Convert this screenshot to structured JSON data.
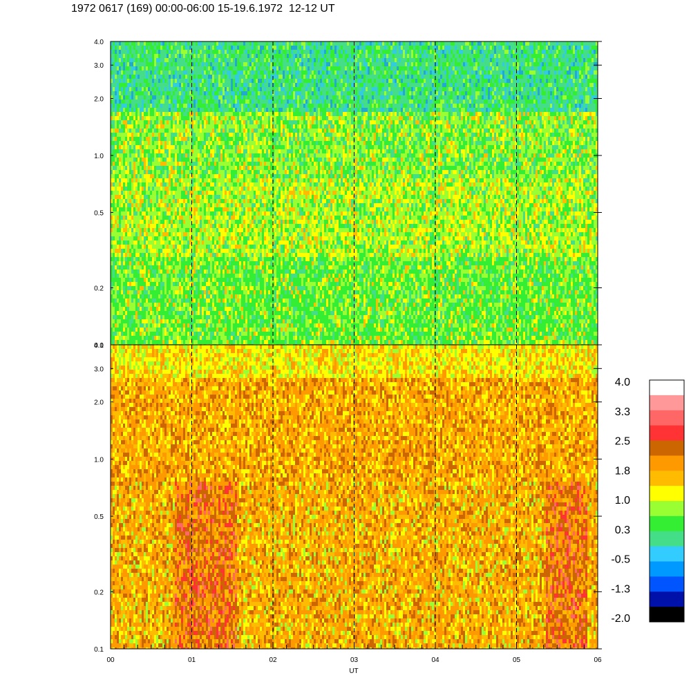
{
  "title": "1972 0617 (169) 00:00-06:00 15-19.6.1972  12-12 UT",
  "chart_data": [
    {
      "type": "heatmap",
      "panel": "top",
      "x_ticks": [
        "00",
        "01",
        "02",
        "03",
        "04",
        "05",
        "06"
      ],
      "x_range": [
        0,
        6
      ],
      "y_ticks": [
        "0.1",
        "0.2",
        "0.5",
        "1.0",
        "2.0",
        "3.0",
        "4.0"
      ],
      "y_range": [
        0.1,
        4.0
      ],
      "y_scale": "log",
      "dashed_hour_lines": [
        1,
        2,
        3,
        4,
        5
      ],
      "dominant_levels": "0.3 to 1.0 (green/yellow), lower near top (cyan)"
    },
    {
      "type": "heatmap",
      "panel": "bottom",
      "x_ticks": [
        "00",
        "01",
        "02",
        "03",
        "04",
        "05",
        "06"
      ],
      "x_range": [
        0,
        6
      ],
      "y_ticks": [
        "0.1",
        "0.2",
        "0.5",
        "1.0",
        "2.0",
        "3.0",
        "4.0"
      ],
      "y_range": [
        0.1,
        4.0
      ],
      "y_scale": "log",
      "dashed_hour_lines": [
        1,
        2,
        3,
        4,
        5
      ],
      "xlabel": "UT",
      "dominant_levels": "1.0 to 2.5 (yellow/orange), red patches near 01 and 05.5"
    }
  ],
  "colorbar": {
    "labels": [
      "4.0",
      "3.3",
      "2.5",
      "1.8",
      "1.0",
      "0.3",
      "-0.5",
      "-1.3",
      "-2.0"
    ],
    "colors": [
      "#ffffff",
      "#ff9999",
      "#ff6666",
      "#ff3333",
      "#cc6600",
      "#ff9900",
      "#ffbb00",
      "#ffff00",
      "#99ff33",
      "#33ee33",
      "#44dd88",
      "#33ccff",
      "#0099ff",
      "#0055ff",
      "#0011aa",
      "#000000"
    ]
  }
}
